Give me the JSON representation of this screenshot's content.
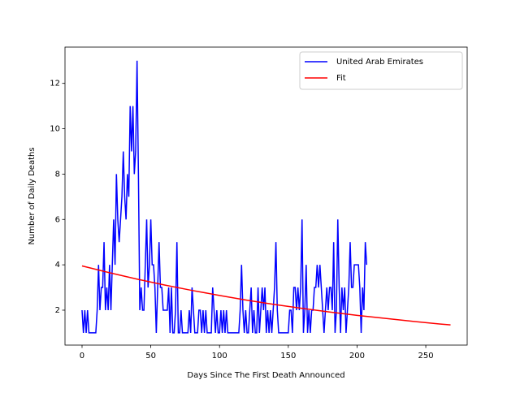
{
  "chart_data": {
    "type": "line",
    "xlabel": "Days Since The First Death Announced",
    "ylabel": "Number of Daily Deaths",
    "xlim": [
      -12.4,
      280.1
    ],
    "ylim": [
      0.46,
      13.6
    ],
    "xticks": [
      0,
      50,
      100,
      150,
      200,
      250
    ],
    "yticks": [
      2,
      4,
      6,
      8,
      10,
      12
    ],
    "legend": "upper right",
    "series": [
      {
        "name": "United Arab Emirates",
        "color": "#0000ff",
        "x": [
          0,
          1,
          2,
          3,
          4,
          5,
          6,
          7,
          8,
          9,
          10,
          11,
          12,
          13,
          14,
          15,
          16,
          17,
          18,
          19,
          20,
          21,
          22,
          23,
          24,
          25,
          26,
          27,
          28,
          29,
          30,
          31,
          32,
          33,
          34,
          35,
          36,
          37,
          38,
          39,
          40,
          41,
          42,
          43,
          44,
          45,
          46,
          47,
          48,
          49,
          50,
          51,
          52,
          53,
          54,
          55,
          56,
          57,
          58,
          59,
          60,
          61,
          62,
          63,
          64,
          65,
          66,
          67,
          68,
          69,
          70,
          71,
          72,
          73,
          74,
          75,
          76,
          77,
          78,
          79,
          80,
          81,
          82,
          83,
          84,
          85,
          86,
          87,
          88,
          89,
          90,
          91,
          92,
          93,
          94,
          95,
          96,
          97,
          98,
          99,
          100,
          101,
          102,
          103,
          104,
          105,
          106,
          107,
          108,
          109,
          110,
          111,
          112,
          113,
          114,
          115,
          116,
          117,
          118,
          119,
          120,
          121,
          122,
          123,
          124,
          125,
          126,
          127,
          128,
          129,
          130,
          131,
          132,
          133,
          134,
          135,
          136,
          137,
          138,
          139,
          140,
          141,
          142,
          143,
          144,
          145,
          146,
          147,
          148,
          149,
          150,
          151,
          152,
          153,
          154,
          155,
          156,
          157,
          158,
          159,
          160,
          161,
          162,
          163,
          164,
          165,
          166,
          167,
          168,
          169,
          170,
          171,
          172,
          173,
          174,
          175,
          176,
          177,
          178,
          179,
          180,
          181,
          182,
          183,
          184,
          185,
          186,
          187,
          188,
          189,
          190,
          191,
          192,
          193,
          194,
          195,
          196,
          197,
          198,
          199,
          200,
          201,
          202,
          203,
          204,
          205,
          206,
          207
        ],
        "values": [
          2,
          1,
          2,
          1,
          2,
          1,
          1,
          1,
          1,
          1,
          1,
          2,
          4,
          2,
          3,
          3,
          5,
          2,
          3,
          2,
          4,
          2,
          4,
          6,
          4,
          8,
          6,
          5,
          6,
          7,
          9,
          7,
          6,
          8,
          7,
          11,
          9,
          11,
          8,
          9,
          13,
          8,
          2,
          3,
          2,
          2,
          4,
          6,
          3,
          4,
          6,
          4,
          4,
          3,
          1,
          3,
          5,
          3,
          3,
          2,
          2,
          2,
          2,
          3,
          1,
          3,
          1,
          1,
          2,
          5,
          1,
          1,
          2,
          1,
          1,
          1,
          1,
          1,
          2,
          1,
          3,
          2,
          1,
          1,
          1,
          2,
          2,
          1,
          2,
          1,
          2,
          1,
          1,
          1,
          1,
          3,
          2,
          1,
          2,
          1,
          1,
          2,
          1,
          2,
          1,
          2,
          1,
          1,
          1,
          1,
          1,
          1,
          1,
          1,
          1,
          2,
          4,
          2,
          1,
          2,
          1,
          1,
          2,
          3,
          1,
          2,
          1,
          1,
          3,
          1,
          2,
          3,
          2,
          3,
          1,
          2,
          1,
          2,
          1,
          2,
          3,
          5,
          2,
          1,
          1,
          1,
          1,
          1,
          1,
          1,
          1,
          2,
          2,
          1,
          3,
          3,
          2,
          3,
          2,
          3,
          6,
          1,
          2,
          4,
          1,
          2,
          1,
          2,
          2,
          3,
          3,
          4,
          3,
          4,
          3,
          2,
          1,
          2,
          3,
          2,
          3,
          3,
          2,
          5,
          1,
          2,
          6,
          3,
          1,
          3,
          2,
          3,
          1,
          2,
          3,
          5,
          3,
          3,
          4,
          4,
          4,
          4,
          3,
          1,
          3,
          2,
          5,
          4
        ]
      },
      {
        "name": "Fit",
        "color": "#ff0000",
        "x": [
          0,
          20,
          40,
          60,
          80,
          100,
          120,
          140,
          160,
          180,
          200,
          220,
          240,
          260,
          268
        ],
        "values": [
          3.95,
          3.65,
          3.37,
          3.11,
          2.87,
          2.65,
          2.44,
          2.25,
          2.08,
          1.92,
          1.77,
          1.64,
          1.51,
          1.39,
          1.35
        ]
      }
    ]
  }
}
